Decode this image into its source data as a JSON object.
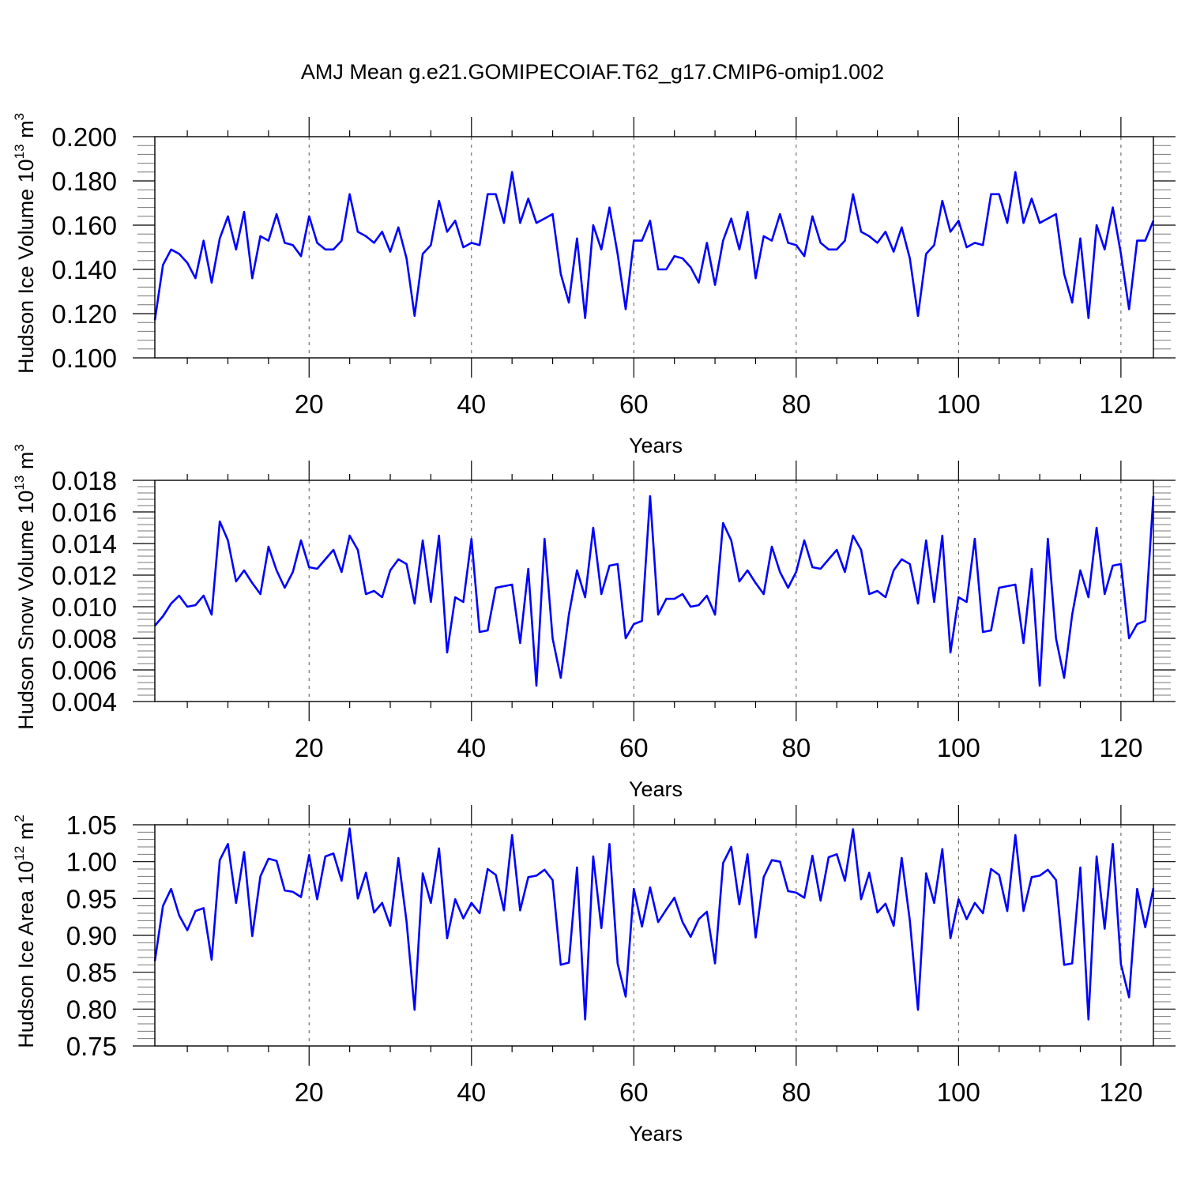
{
  "chart_data": {
    "title": "AMJ Mean g.e21.GOMIPECOIAF.T62_g17.CMIP6-omip1.002",
    "panels": [
      {
        "type": "line",
        "ylabel": "Hudson Ice Volume 10",
        "ylabel_exp": "13",
        "ylabel_unit": " m",
        "ylabel_unit_exp": "3",
        "xlabel": "Years",
        "xlim": [
          1,
          124
        ],
        "ylim": [
          0.1,
          0.2
        ],
        "yticks": [
          0.1,
          0.12,
          0.14,
          0.16,
          0.18,
          0.2
        ],
        "ytick_labels": [
          "0.100",
          "0.120",
          "0.140",
          "0.160",
          "0.180",
          "0.200"
        ],
        "xticks": [
          20,
          40,
          60,
          80,
          100,
          120
        ],
        "xtick_labels": [
          "20",
          "40",
          "60",
          "80",
          "100",
          "120"
        ],
        "line_color": "#0000ff",
        "values": [
          0.117,
          0.142,
          0.149,
          0.147,
          0.143,
          0.136,
          0.153,
          0.134,
          0.154,
          0.164,
          0.149,
          0.166,
          0.136,
          0.155,
          0.153,
          0.165,
          0.152,
          0.151,
          0.146,
          0.164,
          0.152,
          0.149,
          0.149,
          0.153,
          0.174,
          0.157,
          0.155,
          0.152,
          0.157,
          0.148,
          0.159,
          0.145,
          0.119,
          0.147,
          0.151,
          0.171,
          0.157,
          0.162,
          0.15,
          0.152,
          0.151,
          0.174,
          0.174,
          0.161,
          0.184,
          0.161,
          0.172,
          0.161,
          0.163,
          0.165,
          0.138,
          0.125,
          0.154,
          0.118,
          0.16,
          0.149,
          0.168,
          0.147,
          0.122,
          0.153,
          0.153,
          0.162,
          0.14,
          0.14,
          0.146,
          0.145,
          0.141,
          0.134,
          0.152,
          0.133,
          0.153,
          0.163,
          0.149,
          0.166,
          0.136,
          0.155,
          0.153,
          0.165,
          0.152,
          0.151,
          0.146,
          0.164,
          0.152,
          0.149,
          0.149,
          0.153,
          0.174,
          0.157,
          0.155,
          0.152,
          0.157,
          0.148,
          0.159,
          0.145,
          0.119,
          0.147,
          0.151,
          0.171,
          0.157,
          0.162,
          0.15,
          0.152,
          0.151,
          0.174,
          0.174,
          0.161,
          0.184,
          0.161,
          0.172,
          0.161,
          0.163,
          0.165,
          0.138,
          0.125,
          0.154,
          0.118,
          0.16,
          0.149,
          0.168,
          0.147,
          0.122,
          0.153,
          0.153,
          0.162
        ]
      },
      {
        "type": "line",
        "ylabel": "Hudson Snow Volume 10",
        "ylabel_exp": "13",
        "ylabel_unit": " m",
        "ylabel_unit_exp": "3",
        "xlabel": "Years",
        "xlim": [
          1,
          124
        ],
        "ylim": [
          0.004,
          0.018
        ],
        "yticks": [
          0.004,
          0.006,
          0.008,
          0.01,
          0.012,
          0.014,
          0.016,
          0.018
        ],
        "ytick_labels": [
          "0.004",
          "0.006",
          "0.008",
          "0.010",
          "0.012",
          "0.014",
          "0.016",
          "0.018"
        ],
        "xticks": [
          20,
          40,
          60,
          80,
          100,
          120
        ],
        "xtick_labels": [
          "20",
          "40",
          "60",
          "80",
          "100",
          "120"
        ],
        "line_color": "#0000ff",
        "values": [
          0.0088,
          0.0094,
          0.0102,
          0.0107,
          0.01,
          0.0101,
          0.0107,
          0.0095,
          0.0154,
          0.0142,
          0.0116,
          0.0123,
          0.0115,
          0.0108,
          0.0138,
          0.0123,
          0.0112,
          0.0122,
          0.0142,
          0.0125,
          0.0124,
          0.013,
          0.0136,
          0.0122,
          0.0145,
          0.0136,
          0.0108,
          0.011,
          0.0106,
          0.0123,
          0.013,
          0.0127,
          0.0102,
          0.0142,
          0.0103,
          0.0145,
          0.0071,
          0.0106,
          0.0103,
          0.0143,
          0.0084,
          0.0085,
          0.0112,
          0.0113,
          0.0114,
          0.0077,
          0.0124,
          0.005,
          0.0143,
          0.008,
          0.0055,
          0.0095,
          0.0123,
          0.0106,
          0.015,
          0.0108,
          0.0126,
          0.0127,
          0.008,
          0.0089,
          0.0091,
          0.017,
          0.0095,
          0.0105,
          0.0105,
          0.0108,
          0.01,
          0.0101,
          0.0107,
          0.0095,
          0.0153,
          0.0142,
          0.0116,
          0.0123,
          0.0115,
          0.0108,
          0.0138,
          0.0122,
          0.0112,
          0.0122,
          0.0142,
          0.0125,
          0.0124,
          0.013,
          0.0136,
          0.0122,
          0.0145,
          0.0136,
          0.0108,
          0.011,
          0.0106,
          0.0123,
          0.013,
          0.0127,
          0.0102,
          0.0142,
          0.0103,
          0.0145,
          0.0071,
          0.0106,
          0.0103,
          0.0143,
          0.0084,
          0.0085,
          0.0112,
          0.0113,
          0.0114,
          0.0077,
          0.0124,
          0.005,
          0.0143,
          0.008,
          0.0055,
          0.0095,
          0.0123,
          0.0106,
          0.015,
          0.0108,
          0.0126,
          0.0127,
          0.008,
          0.0089,
          0.0091,
          0.017
        ]
      },
      {
        "type": "line",
        "ylabel": "Hudson Ice Area 10",
        "ylabel_exp": "12",
        "ylabel_unit": " m",
        "ylabel_unit_exp": "2",
        "xlabel": "Years",
        "xlim": [
          1,
          124
        ],
        "ylim": [
          0.75,
          1.05
        ],
        "yticks": [
          0.75,
          0.8,
          0.85,
          0.9,
          0.95,
          1.0,
          1.05
        ],
        "ytick_labels": [
          "0.75",
          "0.80",
          "0.85",
          "0.90",
          "0.95",
          "1.00",
          "1.05"
        ],
        "xticks": [
          20,
          40,
          60,
          80,
          100,
          120
        ],
        "xtick_labels": [
          "20",
          "40",
          "60",
          "80",
          "100",
          "120"
        ],
        "line_color": "#0000ff",
        "values": [
          0.865,
          0.94,
          0.963,
          0.927,
          0.907,
          0.933,
          0.937,
          0.867,
          1.002,
          1.024,
          0.944,
          1.013,
          0.899,
          0.98,
          1.004,
          1.001,
          0.961,
          0.959,
          0.952,
          1.009,
          0.949,
          1.007,
          1.011,
          0.974,
          1.045,
          0.95,
          0.985,
          0.931,
          0.944,
          0.913,
          1.005,
          0.919,
          0.799,
          0.984,
          0.944,
          1.018,
          0.896,
          0.949,
          0.923,
          0.944,
          0.93,
          0.99,
          0.982,
          0.934,
          1.036,
          0.934,
          0.979,
          0.981,
          0.989,
          0.975,
          0.86,
          0.863,
          0.992,
          0.786,
          1.007,
          0.91,
          1.024,
          0.862,
          0.817,
          0.963,
          0.912,
          0.965,
          0.918,
          0.935,
          0.951,
          0.918,
          0.898,
          0.922,
          0.932,
          0.862,
          0.998,
          1.02,
          0.942,
          1.01,
          0.897,
          0.979,
          1.002,
          1.0,
          0.96,
          0.958,
          0.951,
          1.008,
          0.947,
          1.006,
          1.01,
          0.974,
          1.044,
          0.949,
          0.985,
          0.931,
          0.943,
          0.913,
          1.005,
          0.92,
          0.799,
          0.984,
          0.944,
          1.017,
          0.896,
          0.949,
          0.922,
          0.944,
          0.93,
          0.99,
          0.982,
          0.933,
          1.036,
          0.933,
          0.979,
          0.981,
          0.989,
          0.975,
          0.86,
          0.862,
          0.992,
          0.786,
          1.007,
          0.909,
          1.024,
          0.861,
          0.816,
          0.963,
          0.911,
          0.964
        ]
      }
    ]
  }
}
